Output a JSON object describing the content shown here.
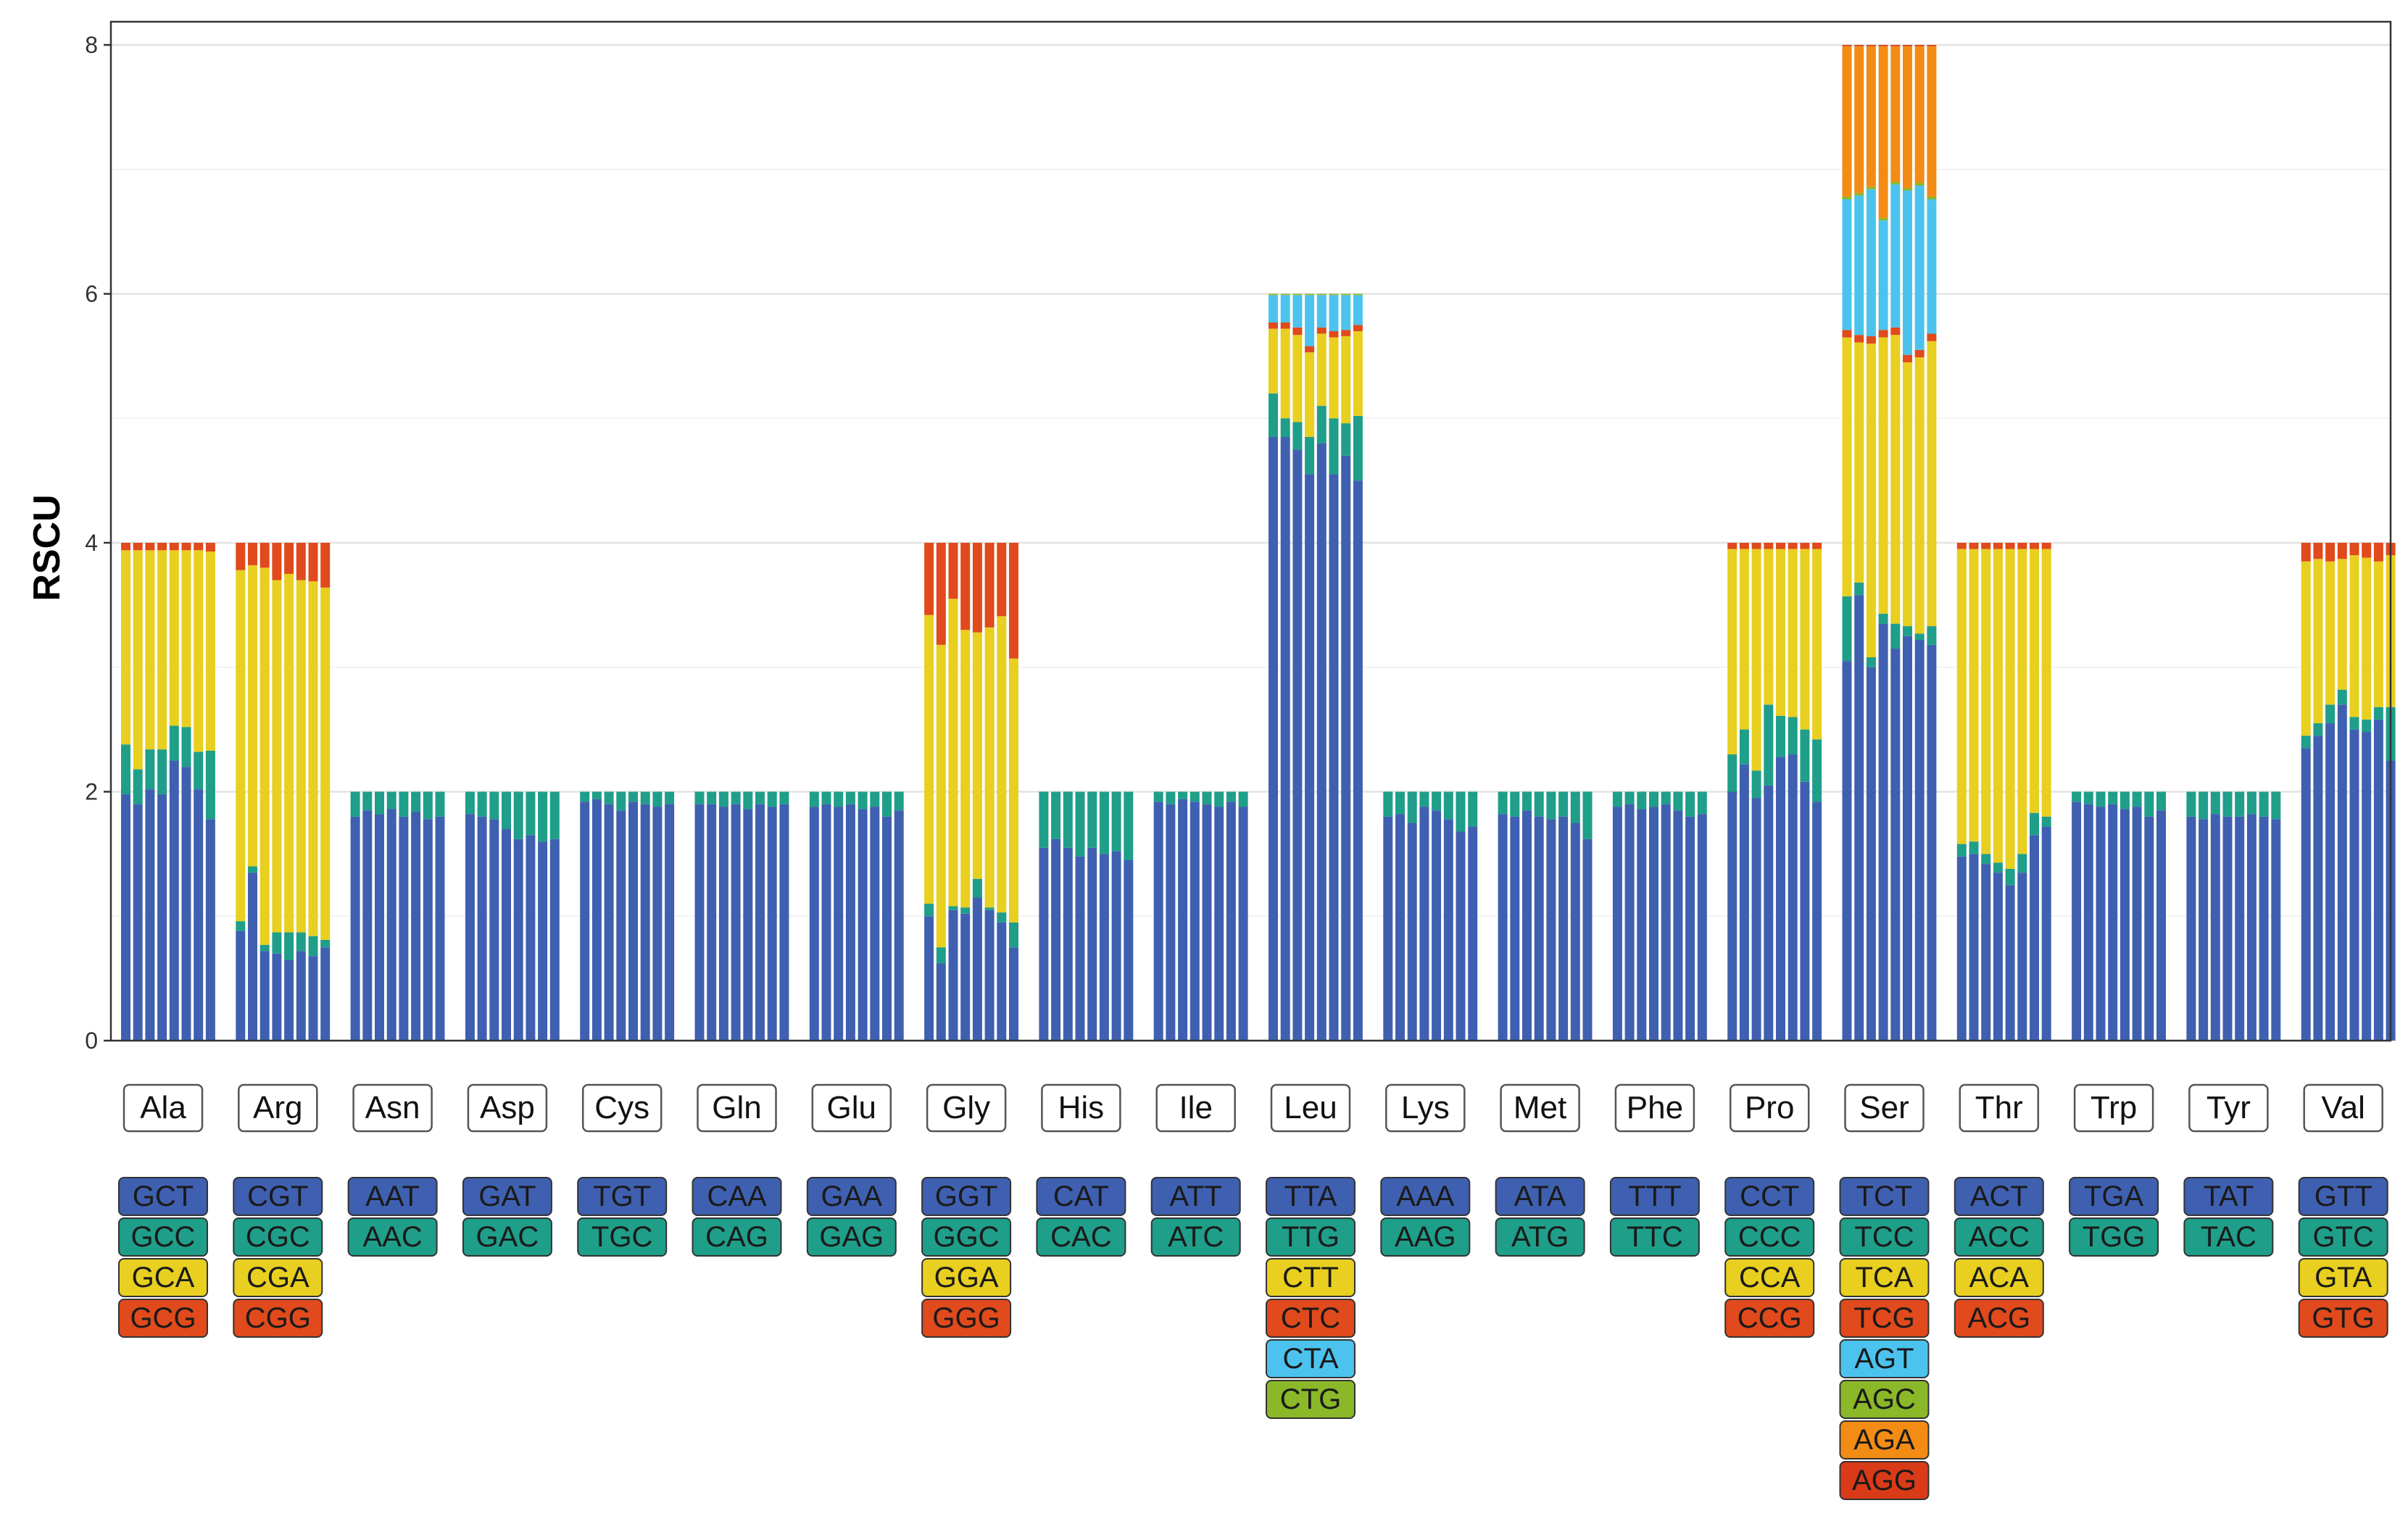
{
  "chart_data": {
    "type": "stacked-bar",
    "ylabel": "RSCU",
    "xlabel": "",
    "ylim": [
      0,
      8
    ],
    "yticks": [
      0,
      2,
      4,
      6,
      8
    ],
    "bars_per_amino_acid": 8,
    "grid": true,
    "codon_colors": [
      "#3f60b0",
      "#1f9e89",
      "#e8cf20",
      "#e04a1c",
      "#4cc3ee",
      "#8ab828",
      "#f28c14",
      "#d93a18"
    ],
    "amino_acids": [
      {
        "name": "Ala",
        "codons": [
          "GCT",
          "GCC",
          "GCA",
          "GCG"
        ],
        "samples": [
          [
            1.98,
            0.4,
            1.56,
            0.06
          ],
          [
            1.9,
            0.28,
            1.76,
            0.06
          ],
          [
            2.02,
            0.32,
            1.6,
            0.06
          ],
          [
            1.98,
            0.36,
            1.6,
            0.06
          ],
          [
            2.25,
            0.28,
            1.41,
            0.06
          ],
          [
            2.2,
            0.32,
            1.42,
            0.06
          ],
          [
            2.02,
            0.3,
            1.62,
            0.06
          ],
          [
            1.78,
            0.55,
            1.6,
            0.07
          ]
        ]
      },
      {
        "name": "Arg",
        "codons": [
          "CGT",
          "CGC",
          "CGA",
          "CGG"
        ],
        "samples": [
          [
            0.88,
            0.08,
            2.82,
            0.22
          ],
          [
            1.35,
            0.05,
            2.42,
            0.18
          ],
          [
            0.72,
            0.05,
            3.03,
            0.2
          ],
          [
            0.7,
            0.17,
            2.83,
            0.3
          ],
          [
            0.65,
            0.22,
            2.88,
            0.25
          ],
          [
            0.72,
            0.15,
            2.83,
            0.3
          ],
          [
            0.68,
            0.16,
            2.85,
            0.31
          ],
          [
            0.75,
            0.06,
            2.83,
            0.36
          ]
        ]
      },
      {
        "name": "Asn",
        "codons": [
          "AAT",
          "AAC"
        ],
        "samples": [
          [
            1.8,
            0.2
          ],
          [
            1.85,
            0.15
          ],
          [
            1.82,
            0.18
          ],
          [
            1.86,
            0.14
          ],
          [
            1.8,
            0.2
          ],
          [
            1.84,
            0.16
          ],
          [
            1.78,
            0.22
          ],
          [
            1.8,
            0.2
          ]
        ]
      },
      {
        "name": "Asp",
        "codons": [
          "GAT",
          "GAC"
        ],
        "samples": [
          [
            1.82,
            0.18
          ],
          [
            1.8,
            0.2
          ],
          [
            1.78,
            0.22
          ],
          [
            1.7,
            0.3
          ],
          [
            1.62,
            0.38
          ],
          [
            1.65,
            0.35
          ],
          [
            1.6,
            0.4
          ],
          [
            1.62,
            0.38
          ]
        ]
      },
      {
        "name": "Cys",
        "codons": [
          "TGT",
          "TGC"
        ],
        "samples": [
          [
            1.92,
            0.08
          ],
          [
            1.94,
            0.06
          ],
          [
            1.9,
            0.1
          ],
          [
            1.85,
            0.15
          ],
          [
            1.92,
            0.08
          ],
          [
            1.9,
            0.1
          ],
          [
            1.88,
            0.12
          ],
          [
            1.9,
            0.1
          ]
        ]
      },
      {
        "name": "Gln",
        "codons": [
          "CAA",
          "CAG"
        ],
        "samples": [
          [
            1.9,
            0.1
          ],
          [
            1.9,
            0.1
          ],
          [
            1.88,
            0.12
          ],
          [
            1.9,
            0.1
          ],
          [
            1.86,
            0.14
          ],
          [
            1.9,
            0.1
          ],
          [
            1.88,
            0.12
          ],
          [
            1.9,
            0.1
          ]
        ]
      },
      {
        "name": "Glu",
        "codons": [
          "GAA",
          "GAG"
        ],
        "samples": [
          [
            1.88,
            0.12
          ],
          [
            1.9,
            0.1
          ],
          [
            1.88,
            0.12
          ],
          [
            1.9,
            0.1
          ],
          [
            1.86,
            0.14
          ],
          [
            1.88,
            0.12
          ],
          [
            1.8,
            0.2
          ],
          [
            1.85,
            0.15
          ]
        ]
      },
      {
        "name": "Gly",
        "codons": [
          "GGT",
          "GGC",
          "GGA",
          "GGG"
        ],
        "samples": [
          [
            1.0,
            0.1,
            2.32,
            0.58
          ],
          [
            0.62,
            0.13,
            2.43,
            0.82
          ],
          [
            1.05,
            0.03,
            2.47,
            0.45
          ],
          [
            1.02,
            0.05,
            2.23,
            0.7
          ],
          [
            1.15,
            0.15,
            1.98,
            0.72
          ],
          [
            1.05,
            0.02,
            2.25,
            0.68
          ],
          [
            0.95,
            0.08,
            2.38,
            0.59
          ],
          [
            0.75,
            0.2,
            2.12,
            0.93
          ]
        ]
      },
      {
        "name": "His",
        "codons": [
          "CAT",
          "CAC"
        ],
        "samples": [
          [
            1.55,
            0.45
          ],
          [
            1.62,
            0.38
          ],
          [
            1.55,
            0.45
          ],
          [
            1.48,
            0.52
          ],
          [
            1.55,
            0.45
          ],
          [
            1.5,
            0.5
          ],
          [
            1.52,
            0.48
          ],
          [
            1.45,
            0.55
          ]
        ]
      },
      {
        "name": "Ile",
        "codons": [
          "ATT",
          "ATC"
        ],
        "samples": [
          [
            1.92,
            0.08
          ],
          [
            1.9,
            0.1
          ],
          [
            1.94,
            0.06
          ],
          [
            1.92,
            0.08
          ],
          [
            1.9,
            0.1
          ],
          [
            1.88,
            0.12
          ],
          [
            1.92,
            0.08
          ],
          [
            1.88,
            0.12
          ]
        ]
      },
      {
        "name": "Leu",
        "codons": [
          "TTA",
          "TTG",
          "CTT",
          "CTC",
          "CTA",
          "CTG"
        ],
        "samples": [
          [
            4.85,
            0.35,
            0.52,
            0.05,
            0.22,
            0.01
          ],
          [
            4.85,
            0.15,
            0.72,
            0.05,
            0.22,
            0.01
          ],
          [
            4.75,
            0.22,
            0.7,
            0.06,
            0.26,
            0.01
          ],
          [
            4.55,
            0.3,
            0.68,
            0.05,
            0.41,
            0.01
          ],
          [
            4.8,
            0.3,
            0.58,
            0.05,
            0.26,
            0.01
          ],
          [
            4.55,
            0.45,
            0.65,
            0.05,
            0.29,
            0.01
          ],
          [
            4.7,
            0.26,
            0.7,
            0.05,
            0.28,
            0.01
          ],
          [
            4.5,
            0.52,
            0.68,
            0.05,
            0.24,
            0.01
          ]
        ]
      },
      {
        "name": "Lys",
        "codons": [
          "AAA",
          "AAG"
        ],
        "samples": [
          [
            1.8,
            0.2
          ],
          [
            1.82,
            0.18
          ],
          [
            1.75,
            0.25
          ],
          [
            1.88,
            0.12
          ],
          [
            1.85,
            0.15
          ],
          [
            1.78,
            0.22
          ],
          [
            1.68,
            0.32
          ],
          [
            1.72,
            0.28
          ]
        ]
      },
      {
        "name": "Met",
        "codons": [
          "ATA",
          "ATG"
        ],
        "samples": [
          [
            1.82,
            0.18
          ],
          [
            1.8,
            0.2
          ],
          [
            1.85,
            0.15
          ],
          [
            1.8,
            0.2
          ],
          [
            1.78,
            0.22
          ],
          [
            1.8,
            0.2
          ],
          [
            1.75,
            0.25
          ],
          [
            1.62,
            0.38
          ]
        ]
      },
      {
        "name": "Phe",
        "codons": [
          "TTT",
          "TTC"
        ],
        "samples": [
          [
            1.88,
            0.12
          ],
          [
            1.9,
            0.1
          ],
          [
            1.86,
            0.14
          ],
          [
            1.88,
            0.12
          ],
          [
            1.9,
            0.1
          ],
          [
            1.85,
            0.15
          ],
          [
            1.8,
            0.2
          ],
          [
            1.82,
            0.18
          ]
        ]
      },
      {
        "name": "Pro",
        "codons": [
          "CCT",
          "CCC",
          "CCA",
          "CCG"
        ],
        "samples": [
          [
            2.0,
            0.3,
            1.65,
            0.05
          ],
          [
            2.22,
            0.28,
            1.45,
            0.05
          ],
          [
            1.95,
            0.22,
            1.78,
            0.05
          ],
          [
            2.05,
            0.65,
            1.25,
            0.05
          ],
          [
            2.28,
            0.33,
            1.34,
            0.05
          ],
          [
            2.3,
            0.3,
            1.35,
            0.05
          ],
          [
            2.08,
            0.42,
            1.45,
            0.05
          ],
          [
            1.92,
            0.5,
            1.53,
            0.05
          ]
        ]
      },
      {
        "name": "Ser",
        "codons": [
          "TCT",
          "TCC",
          "TCA",
          "TCG",
          "AGT",
          "AGC",
          "AGA",
          "AGG"
        ],
        "samples": [
          [
            3.05,
            0.52,
            2.08,
            0.06,
            1.05,
            0.02,
            1.21,
            0.01
          ],
          [
            3.58,
            0.1,
            1.93,
            0.06,
            1.12,
            0.02,
            1.18,
            0.01
          ],
          [
            3.0,
            0.08,
            2.52,
            0.06,
            1.18,
            0.02,
            1.13,
            0.01
          ],
          [
            3.35,
            0.08,
            2.22,
            0.06,
            0.88,
            0.02,
            1.38,
            0.01
          ],
          [
            3.15,
            0.2,
            2.32,
            0.06,
            1.15,
            0.02,
            1.09,
            0.01
          ],
          [
            3.25,
            0.08,
            2.12,
            0.06,
            1.32,
            0.02,
            1.14,
            0.01
          ],
          [
            3.22,
            0.05,
            2.22,
            0.06,
            1.32,
            0.02,
            1.1,
            0.01
          ],
          [
            3.18,
            0.15,
            2.29,
            0.06,
            1.08,
            0.02,
            1.21,
            0.01
          ]
        ]
      },
      {
        "name": "Thr",
        "codons": [
          "ACT",
          "ACC",
          "ACA",
          "ACG"
        ],
        "samples": [
          [
            1.48,
            0.1,
            2.37,
            0.05
          ],
          [
            1.5,
            0.1,
            2.35,
            0.05
          ],
          [
            1.42,
            0.08,
            2.45,
            0.05
          ],
          [
            1.35,
            0.08,
            2.52,
            0.05
          ],
          [
            1.25,
            0.13,
            2.57,
            0.05
          ],
          [
            1.35,
            0.15,
            2.45,
            0.05
          ],
          [
            1.65,
            0.18,
            2.12,
            0.05
          ],
          [
            1.72,
            0.08,
            2.15,
            0.05
          ]
        ]
      },
      {
        "name": "Trp",
        "codons": [
          "TGA",
          "TGG"
        ],
        "samples": [
          [
            1.92,
            0.08
          ],
          [
            1.9,
            0.1
          ],
          [
            1.88,
            0.12
          ],
          [
            1.9,
            0.1
          ],
          [
            1.86,
            0.14
          ],
          [
            1.88,
            0.12
          ],
          [
            1.8,
            0.2
          ],
          [
            1.85,
            0.15
          ]
        ]
      },
      {
        "name": "Tyr",
        "codons": [
          "TAT",
          "TAC"
        ],
        "samples": [
          [
            1.8,
            0.2
          ],
          [
            1.78,
            0.22
          ],
          [
            1.82,
            0.18
          ],
          [
            1.8,
            0.2
          ],
          [
            1.8,
            0.2
          ],
          [
            1.82,
            0.18
          ],
          [
            1.8,
            0.2
          ],
          [
            1.78,
            0.22
          ]
        ]
      },
      {
        "name": "Val",
        "codons": [
          "GTT",
          "GTC",
          "GTA",
          "GTG"
        ],
        "samples": [
          [
            2.35,
            0.1,
            1.4,
            0.15
          ],
          [
            2.45,
            0.1,
            1.32,
            0.13
          ],
          [
            2.55,
            0.15,
            1.15,
            0.15
          ],
          [
            2.7,
            0.12,
            1.05,
            0.13
          ],
          [
            2.5,
            0.1,
            1.3,
            0.1
          ],
          [
            2.48,
            0.1,
            1.3,
            0.12
          ],
          [
            2.58,
            0.1,
            1.17,
            0.15
          ],
          [
            2.25,
            0.43,
            1.22,
            0.1
          ]
        ]
      }
    ]
  }
}
